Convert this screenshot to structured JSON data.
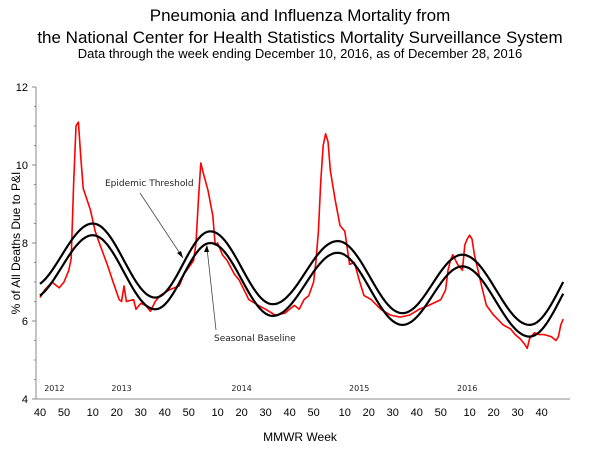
{
  "chart_data": {
    "type": "line",
    "title": [
      "Pneumonia and Influenza Mortality from",
      "the National Center for Health Statistics Mortality Surveillance System"
    ],
    "subtitle": "Data through the week ending December 10, 2016, as of December 28, 2016",
    "xlabel": "MMWR Week",
    "ylabel": "% of All Deaths Due to P&I",
    "ylim": [
      4,
      12
    ],
    "yticks": [
      "4",
      "6",
      "8",
      "10",
      "12"
    ],
    "xlim": [
      "2012-W40",
      "2016-W49"
    ],
    "xticks": [
      {
        "week": "2012-W40",
        "label": "40"
      },
      {
        "week": "2012-W50",
        "label": "50"
      },
      {
        "week": "2013-W10",
        "label": "10"
      },
      {
        "week": "2013-W20",
        "label": "20"
      },
      {
        "week": "2013-W30",
        "label": "30"
      },
      {
        "week": "2013-W40",
        "label": "40"
      },
      {
        "week": "2013-W50",
        "label": "50"
      },
      {
        "week": "2014-W10",
        "label": "10"
      },
      {
        "week": "2014-W20",
        "label": "20"
      },
      {
        "week": "2014-W30",
        "label": "30"
      },
      {
        "week": "2014-W40",
        "label": "40"
      },
      {
        "week": "2014-W50",
        "label": "50"
      },
      {
        "week": "2015-W10",
        "label": "10"
      },
      {
        "week": "2015-W20",
        "label": "20"
      },
      {
        "week": "2015-W30",
        "label": "30"
      },
      {
        "week": "2015-W40",
        "label": "40"
      },
      {
        "week": "2015-W50",
        "label": "50"
      },
      {
        "week": "2016-W10",
        "label": "10"
      },
      {
        "week": "2016-W20",
        "label": "20"
      },
      {
        "week": "2016-W30",
        "label": "30"
      },
      {
        "week": "2016-W40",
        "label": "40"
      }
    ],
    "year_labels": [
      "2012",
      "2013",
      "2014",
      "2015",
      "2016"
    ],
    "grid": false,
    "colors": {
      "observed": "#ff0000",
      "baseline": "#000000",
      "threshold": "#000000"
    },
    "annotations": [
      {
        "text": "Epidemic Threshold",
        "target": "threshold"
      },
      {
        "text": "Seasonal Baseline",
        "target": "baseline"
      }
    ],
    "series": [
      {
        "key": "observed",
        "points": [
          [
            "2012-W40",
            6.6
          ],
          [
            "2012-W42",
            6.8
          ],
          [
            "2012-W45",
            7.0
          ],
          [
            "2012-W48",
            6.85
          ],
          [
            "2012-W50",
            7.0
          ],
          [
            "2012-W52",
            7.3
          ],
          [
            "2013-W01",
            7.6
          ],
          [
            "2013-W02",
            9.5
          ],
          [
            "2013-W03",
            11.0
          ],
          [
            "2013-W04",
            11.1
          ],
          [
            "2013-W05",
            10.2
          ],
          [
            "2013-W06",
            9.4
          ],
          [
            "2013-W09",
            8.85
          ],
          [
            "2013-W11",
            8.3
          ],
          [
            "2013-W13",
            7.95
          ],
          [
            "2013-W16",
            7.45
          ],
          [
            "2013-W19",
            6.9
          ],
          [
            "2013-W21",
            6.55
          ],
          [
            "2013-W22",
            6.5
          ],
          [
            "2013-W23",
            6.9
          ],
          [
            "2013-W24",
            6.5
          ],
          [
            "2013-W27",
            6.55
          ],
          [
            "2013-W28",
            6.3
          ],
          [
            "2013-W30",
            6.45
          ],
          [
            "2013-W32",
            6.4
          ],
          [
            "2013-W34",
            6.25
          ],
          [
            "2013-W36",
            6.5
          ],
          [
            "2013-W38",
            6.65
          ],
          [
            "2013-W42",
            6.8
          ],
          [
            "2013-W46",
            6.9
          ],
          [
            "2013-W48",
            7.2
          ],
          [
            "2013-W52",
            7.55
          ],
          [
            "2014-W01",
            8.0
          ],
          [
            "2014-W02",
            9.1
          ],
          [
            "2014-W03",
            10.05
          ],
          [
            "2014-W04",
            9.8
          ],
          [
            "2014-W06",
            9.35
          ],
          [
            "2014-W08",
            8.7
          ],
          [
            "2014-W09",
            7.95
          ],
          [
            "2014-W10",
            8.0
          ],
          [
            "2014-W12",
            7.7
          ],
          [
            "2014-W14",
            7.55
          ],
          [
            "2014-W17",
            7.2
          ],
          [
            "2014-W19",
            7.05
          ],
          [
            "2014-W21",
            6.8
          ],
          [
            "2014-W23",
            6.55
          ],
          [
            "2014-W27",
            6.4
          ],
          [
            "2014-W30",
            6.3
          ],
          [
            "2014-W34",
            6.15
          ],
          [
            "2014-W38",
            6.2
          ],
          [
            "2014-W42",
            6.4
          ],
          [
            "2014-W44",
            6.3
          ],
          [
            "2014-W46",
            6.55
          ],
          [
            "2014-W48",
            6.65
          ],
          [
            "2014-W50",
            7.0
          ],
          [
            "2014-W51",
            7.55
          ],
          [
            "2014-W52",
            8.3
          ],
          [
            "2014-W53",
            9.6
          ],
          [
            "2015-W01",
            10.5
          ],
          [
            "2015-W02",
            10.8
          ],
          [
            "2015-W03",
            10.6
          ],
          [
            "2015-W04",
            9.85
          ],
          [
            "2015-W06",
            9.1
          ],
          [
            "2015-W08",
            8.45
          ],
          [
            "2015-W10",
            8.3
          ],
          [
            "2015-W12",
            7.45
          ],
          [
            "2015-W14",
            7.5
          ],
          [
            "2015-W16",
            7.05
          ],
          [
            "2015-W18",
            6.65
          ],
          [
            "2015-W21",
            6.55
          ],
          [
            "2015-W25",
            6.3
          ],
          [
            "2015-W29",
            6.15
          ],
          [
            "2015-W33",
            6.1
          ],
          [
            "2015-W37",
            6.15
          ],
          [
            "2015-W41",
            6.3
          ],
          [
            "2015-W45",
            6.4
          ],
          [
            "2015-W50",
            6.55
          ],
          [
            "2015-W52",
            6.8
          ],
          [
            "2016-W01",
            7.3
          ],
          [
            "2016-W02",
            7.55
          ],
          [
            "2016-W03",
            7.7
          ],
          [
            "2016-W05",
            7.45
          ],
          [
            "2016-W07",
            7.3
          ],
          [
            "2016-W08",
            7.95
          ],
          [
            "2016-W09",
            8.1
          ],
          [
            "2016-W10",
            8.2
          ],
          [
            "2016-W11",
            8.1
          ],
          [
            "2016-W12",
            7.7
          ],
          [
            "2016-W15",
            6.9
          ],
          [
            "2016-W17",
            6.4
          ],
          [
            "2016-W20",
            6.15
          ],
          [
            "2016-W24",
            5.9
          ],
          [
            "2016-W27",
            5.8
          ],
          [
            "2016-W29",
            5.65
          ],
          [
            "2016-W31",
            5.55
          ],
          [
            "2016-W33",
            5.4
          ],
          [
            "2016-W34",
            5.3
          ],
          [
            "2016-W35",
            5.55
          ],
          [
            "2016-W37",
            5.7
          ],
          [
            "2016-W39",
            5.65
          ],
          [
            "2016-W41",
            5.65
          ],
          [
            "2016-W44",
            5.6
          ],
          [
            "2016-W46",
            5.5
          ],
          [
            "2016-W47",
            5.6
          ],
          [
            "2016-W48",
            5.9
          ],
          [
            "2016-W49",
            6.05
          ]
        ]
      },
      {
        "key": "baseline",
        "points": [
          [
            "2012-W40",
            6.65
          ],
          [
            "2013-W10",
            8.2
          ],
          [
            "2013-W36",
            6.3
          ],
          [
            "2014-W07",
            8.0
          ],
          [
            "2014-W33",
            6.13
          ],
          [
            "2015-W07",
            7.75
          ],
          [
            "2015-W34",
            5.9
          ],
          [
            "2016-W07",
            7.4
          ],
          [
            "2016-W35",
            5.6
          ],
          [
            "2016-W49",
            6.7
          ]
        ]
      },
      {
        "key": "threshold",
        "points": [
          [
            "2012-W40",
            6.95
          ],
          [
            "2013-W10",
            8.5
          ],
          [
            "2013-W36",
            6.6
          ],
          [
            "2014-W07",
            8.3
          ],
          [
            "2014-W33",
            6.43
          ],
          [
            "2015-W07",
            8.05
          ],
          [
            "2015-W34",
            6.2
          ],
          [
            "2016-W07",
            7.7
          ],
          [
            "2016-W35",
            5.9
          ],
          [
            "2016-W49",
            7.0
          ]
        ]
      }
    ]
  }
}
